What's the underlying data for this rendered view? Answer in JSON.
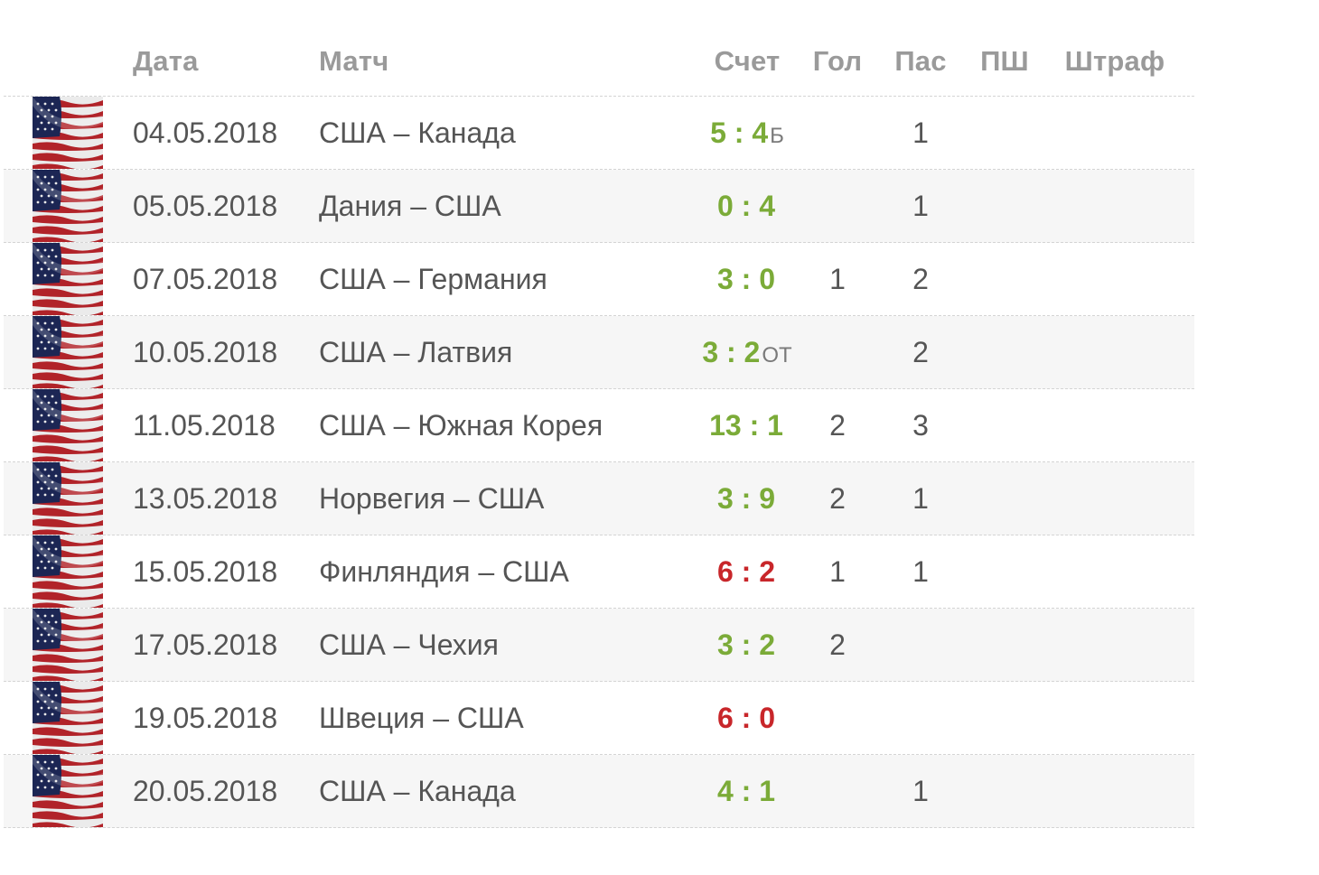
{
  "table": {
    "headers": {
      "date": "Дата",
      "match": "Матч",
      "score": "Счет",
      "goals": "Гол",
      "assists": "Пас",
      "ppg": "ПШ",
      "pim": "Штраф"
    },
    "colors": {
      "win": "#7bab38",
      "loss": "#c8262a"
    },
    "rows": [
      {
        "flag_icon": "usa-flag-icon",
        "date": "04.05.2018",
        "match": "США – Канада",
        "score": "5 : 4",
        "note": "Б",
        "result": "win",
        "goals": "",
        "assists": "1",
        "ppg": "",
        "pim": ""
      },
      {
        "flag_icon": "usa-flag-icon",
        "date": "05.05.2018",
        "match": "Дания – США",
        "score": "0 : 4",
        "note": "",
        "result": "win",
        "goals": "",
        "assists": "1",
        "ppg": "",
        "pim": ""
      },
      {
        "flag_icon": "usa-flag-icon",
        "date": "07.05.2018",
        "match": "США – Германия",
        "score": "3 : 0",
        "note": "",
        "result": "win",
        "goals": "1",
        "assists": "2",
        "ppg": "",
        "pim": ""
      },
      {
        "flag_icon": "usa-flag-icon",
        "date": "10.05.2018",
        "match": "США – Латвия",
        "score": "3 : 2",
        "note": "ОТ",
        "result": "win",
        "goals": "",
        "assists": "2",
        "ppg": "",
        "pim": ""
      },
      {
        "flag_icon": "usa-flag-icon",
        "date": "11.05.2018",
        "match": "США – Южная Корея",
        "score": "13 : 1",
        "note": "",
        "result": "win",
        "goals": "2",
        "assists": "3",
        "ppg": "",
        "pim": ""
      },
      {
        "flag_icon": "usa-flag-icon",
        "date": "13.05.2018",
        "match": "Норвегия – США",
        "score": "3 : 9",
        "note": "",
        "result": "win",
        "goals": "2",
        "assists": "1",
        "ppg": "",
        "pim": ""
      },
      {
        "flag_icon": "usa-flag-icon",
        "date": "15.05.2018",
        "match": "Финляндия – США",
        "score": "6 : 2",
        "note": "",
        "result": "loss",
        "goals": "1",
        "assists": "1",
        "ppg": "",
        "pim": ""
      },
      {
        "flag_icon": "usa-flag-icon",
        "date": "17.05.2018",
        "match": "США – Чехия",
        "score": "3 : 2",
        "note": "",
        "result": "win",
        "goals": "2",
        "assists": "",
        "ppg": "",
        "pim": ""
      },
      {
        "flag_icon": "usa-flag-icon",
        "date": "19.05.2018",
        "match": "Швеция – США",
        "score": "6 : 0",
        "note": "",
        "result": "loss",
        "goals": "",
        "assists": "",
        "ppg": "",
        "pim": ""
      },
      {
        "flag_icon": "usa-flag-icon",
        "date": "20.05.2018",
        "match": "США – Канада",
        "score": "4 : 1",
        "note": "",
        "result": "win",
        "goals": "",
        "assists": "1",
        "ppg": "",
        "pim": ""
      }
    ]
  }
}
